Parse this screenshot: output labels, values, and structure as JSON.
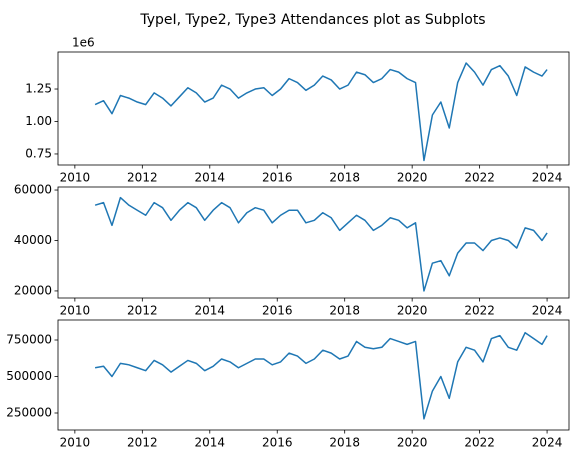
{
  "title": "TypeI, Type2, Type3 Attendances plot as Subplots",
  "chart_data": [
    {
      "type": "line",
      "offset_label": "1e6",
      "color": "#1f77b4",
      "x": [
        2010.6,
        2010.85,
        2011.1,
        2011.35,
        2011.6,
        2011.85,
        2012.1,
        2012.35,
        2012.6,
        2012.85,
        2013.1,
        2013.35,
        2013.6,
        2013.85,
        2014.1,
        2014.35,
        2014.6,
        2014.85,
        2015.1,
        2015.35,
        2015.6,
        2015.85,
        2016.1,
        2016.35,
        2016.6,
        2016.85,
        2017.1,
        2017.35,
        2017.6,
        2017.85,
        2018.1,
        2018.35,
        2018.6,
        2018.85,
        2019.1,
        2019.35,
        2019.6,
        2019.85,
        2020.1,
        2020.35,
        2020.6,
        2020.85,
        2021.1,
        2021.35,
        2021.6,
        2021.85,
        2022.1,
        2022.35,
        2022.6,
        2022.85,
        2023.1,
        2023.35,
        2023.6,
        2023.85,
        2024.0
      ],
      "values": [
        1130000,
        1160000,
        1060000,
        1200000,
        1180000,
        1150000,
        1130000,
        1220000,
        1180000,
        1120000,
        1190000,
        1260000,
        1220000,
        1150000,
        1180000,
        1280000,
        1250000,
        1180000,
        1220000,
        1250000,
        1260000,
        1200000,
        1250000,
        1330000,
        1300000,
        1240000,
        1280000,
        1350000,
        1320000,
        1250000,
        1280000,
        1380000,
        1360000,
        1300000,
        1330000,
        1400000,
        1380000,
        1330000,
        1300000,
        700000,
        1050000,
        1150000,
        950000,
        1300000,
        1450000,
        1380000,
        1280000,
        1400000,
        1430000,
        1350000,
        1200000,
        1420000,
        1380000,
        1350000,
        1400000
      ],
      "xlim": [
        2009.5,
        2024.65
      ],
      "xticks": [
        2010,
        2012,
        2014,
        2016,
        2018,
        2020,
        2022,
        2024
      ],
      "ylim": [
        665000,
        1535000
      ],
      "yticks": [
        {
          "value": 750000,
          "label": "0.75"
        },
        {
          "value": 1000000,
          "label": "1.00"
        },
        {
          "value": 1250000,
          "label": "1.25"
        }
      ]
    },
    {
      "type": "line",
      "color": "#1f77b4",
      "x": [
        2010.6,
        2010.85,
        2011.1,
        2011.35,
        2011.6,
        2011.85,
        2012.1,
        2012.35,
        2012.6,
        2012.85,
        2013.1,
        2013.35,
        2013.6,
        2013.85,
        2014.1,
        2014.35,
        2014.6,
        2014.85,
        2015.1,
        2015.35,
        2015.6,
        2015.85,
        2016.1,
        2016.35,
        2016.6,
        2016.85,
        2017.1,
        2017.35,
        2017.6,
        2017.85,
        2018.1,
        2018.35,
        2018.6,
        2018.85,
        2019.1,
        2019.35,
        2019.6,
        2019.85,
        2020.1,
        2020.35,
        2020.6,
        2020.85,
        2021.1,
        2021.35,
        2021.6,
        2021.85,
        2022.1,
        2022.35,
        2022.6,
        2022.85,
        2023.1,
        2023.35,
        2023.6,
        2023.85,
        2024.0
      ],
      "values": [
        54000,
        55000,
        46000,
        57000,
        54000,
        52000,
        50000,
        55000,
        53000,
        48000,
        52000,
        55000,
        53000,
        48000,
        52000,
        55000,
        53000,
        47000,
        51000,
        53000,
        52000,
        47000,
        50000,
        52000,
        52000,
        47000,
        48000,
        51000,
        49000,
        44000,
        47000,
        50000,
        48000,
        44000,
        46000,
        49000,
        48000,
        45000,
        47000,
        20000,
        31000,
        32000,
        26000,
        35000,
        39000,
        39000,
        36000,
        40000,
        41000,
        40000,
        37000,
        45000,
        44000,
        40000,
        43000
      ],
      "xlim": [
        2009.5,
        2024.65
      ],
      "xticks": [
        2010,
        2012,
        2014,
        2016,
        2018,
        2020,
        2022,
        2024
      ],
      "ylim": [
        17200,
        61200
      ],
      "yticks": [
        20000,
        40000,
        60000
      ]
    },
    {
      "type": "line",
      "color": "#1f77b4",
      "x": [
        2010.6,
        2010.85,
        2011.1,
        2011.35,
        2011.6,
        2011.85,
        2012.1,
        2012.35,
        2012.6,
        2012.85,
        2013.1,
        2013.35,
        2013.6,
        2013.85,
        2014.1,
        2014.35,
        2014.6,
        2014.85,
        2015.1,
        2015.35,
        2015.6,
        2015.85,
        2016.1,
        2016.35,
        2016.6,
        2016.85,
        2017.1,
        2017.35,
        2017.6,
        2017.85,
        2018.1,
        2018.35,
        2018.6,
        2018.85,
        2019.1,
        2019.35,
        2019.6,
        2019.85,
        2020.1,
        2020.35,
        2020.6,
        2020.85,
        2021.1,
        2021.35,
        2021.6,
        2021.85,
        2022.1,
        2022.35,
        2022.6,
        2022.85,
        2023.1,
        2023.35,
        2023.6,
        2023.85,
        2024.0
      ],
      "values": [
        560000,
        570000,
        500000,
        590000,
        580000,
        560000,
        540000,
        610000,
        580000,
        530000,
        570000,
        610000,
        590000,
        540000,
        570000,
        620000,
        600000,
        560000,
        590000,
        620000,
        620000,
        580000,
        600000,
        660000,
        640000,
        590000,
        620000,
        680000,
        660000,
        620000,
        640000,
        740000,
        700000,
        690000,
        700000,
        760000,
        740000,
        720000,
        740000,
        210000,
        400000,
        500000,
        350000,
        600000,
        700000,
        680000,
        600000,
        760000,
        780000,
        700000,
        680000,
        800000,
        760000,
        720000,
        780000
      ],
      "xlim": [
        2009.5,
        2024.65
      ],
      "xticks": [
        2010,
        2012,
        2014,
        2016,
        2018,
        2020,
        2022,
        2024
      ],
      "ylim": [
        133500,
        887000
      ],
      "yticks": [
        250000,
        500000,
        750000
      ]
    }
  ]
}
